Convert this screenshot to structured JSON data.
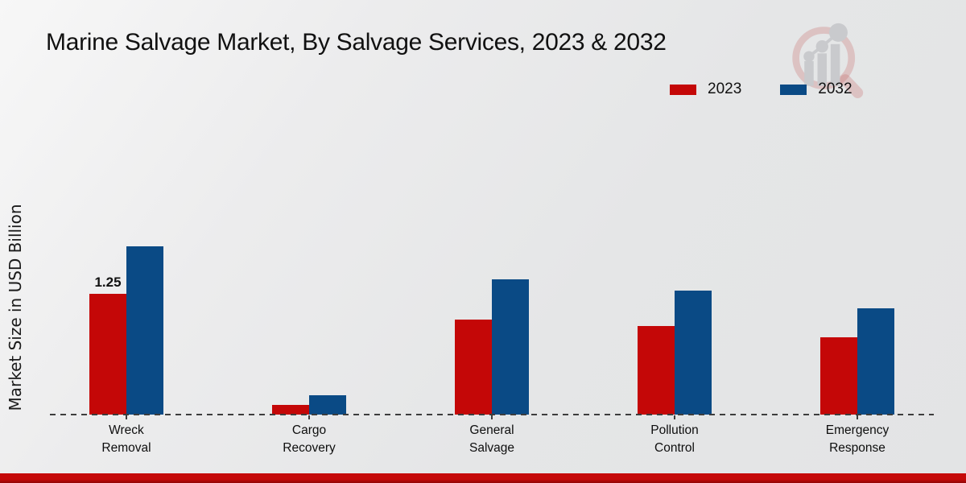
{
  "title": "Marine Salvage Market, By Salvage Services, 2023 & 2032",
  "ylabel": "Market Size in USD Billion",
  "legend": {
    "position": "top-right",
    "items": [
      {
        "label": "2023",
        "color": "#c40707"
      },
      {
        "label": "2032",
        "color": "#0a4a85"
      }
    ]
  },
  "chart_data": {
    "type": "bar",
    "title": "Marine Salvage Market, By Salvage Services, 2023 & 2032",
    "ylabel": "Market Size in USD Billion",
    "xlabel": "",
    "unit": "USD Billion",
    "categories": [
      "Wreck\nRemoval",
      "Cargo\nRecovery",
      "General\nSalvage",
      "Pollution\nControl",
      "Emergency\nResponse"
    ],
    "series": [
      {
        "name": "2023",
        "color": "#c40707",
        "values": [
          1.25,
          0.1,
          0.98,
          0.92,
          0.8
        ]
      },
      {
        "name": "2032",
        "color": "#0a4a85",
        "values": [
          1.74,
          0.2,
          1.4,
          1.28,
          1.1
        ]
      }
    ],
    "annotations": [
      {
        "series_index": 0,
        "category_index": 0,
        "text": "1.25"
      }
    ],
    "axis": {
      "baseline_style": "dashed",
      "gridlines": false,
      "y_ticks_visible": false
    },
    "legend_position": "top-right"
  },
  "watermark": {
    "icon": "magnifier-bar-chart-logo"
  },
  "footer": {
    "color": "#c50909"
  }
}
